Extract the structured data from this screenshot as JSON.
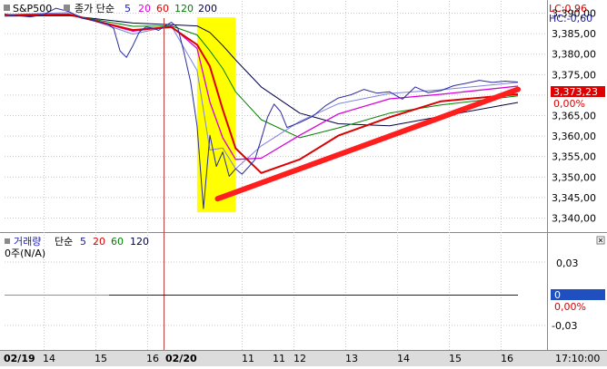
{
  "price_panel": {
    "symbol": "S&P500",
    "ma_label": "종가 단순",
    "ma_periods": [
      "5",
      "20",
      "60",
      "120",
      "200"
    ],
    "ma_colors": [
      "#1a1aa8",
      "#d800d8",
      "#dd0000",
      "#008000",
      "#000040"
    ],
    "lc_label": "LC:0,96",
    "hc_label": "HC:-0,60",
    "current_price_tag": "3,373,23",
    "pct_label": "0,00%",
    "y_ticks": [
      "3,390,00",
      "3,385,00",
      "3,380,00",
      "3,375,00",
      "3,370,00",
      "3,365,00",
      "3,360,00",
      "3,355,00",
      "3,350,00",
      "3,345,00",
      "3,340,00"
    ]
  },
  "volume_panel": {
    "label": "거래량",
    "ma_label": "단순",
    "ma_periods": [
      "5",
      "20",
      "60",
      "120"
    ],
    "ma_colors": [
      "#1a1aa8",
      "#dd0000",
      "#008000",
      "#000040"
    ],
    "unit_label": "0주(N/A)",
    "y_ticks": [
      "0,03",
      "0,00%",
      "-0,03"
    ],
    "value_tag": "0",
    "collapse_icon": "close-icon"
  },
  "x_axis": {
    "labels": [
      "02/19",
      "14",
      "15",
      "16",
      "02/20",
      "11",
      "11",
      "12",
      "13",
      "14",
      "15",
      "16"
    ],
    "time": "17:10:00"
  },
  "chart_data": {
    "type": "line",
    "title": "",
    "series": [
      {
        "name": "S&P500",
        "x": [
          0,
          10,
          20,
          30,
          40,
          50,
          60,
          70,
          80,
          85,
          90,
          95,
          100,
          105,
          110,
          115,
          120,
          125,
          130,
          135,
          140,
          145,
          150,
          155,
          160,
          165,
          170,
          175,
          180,
          185,
          190,
          195,
          200,
          205,
          210,
          215,
          220,
          230,
          240,
          250,
          260,
          270,
          280,
          290,
          300,
          310,
          320,
          330,
          340,
          350,
          360,
          370,
          380,
          390,
          400
        ],
        "values": [
          3389.8,
          3389.4,
          3389.1,
          3389.6,
          3391.2,
          3390.4,
          3388.8,
          3388.2,
          3387.4,
          3386.3,
          3380.8,
          3379.2,
          3382.1,
          3385.4,
          3386.6,
          3386.4,
          3385.8,
          3386.9,
          3387.8,
          3386.4,
          3380.1,
          3373.2,
          3362.4,
          3342.3,
          3360.2,
          3352.6,
          3356.1,
          3350.2,
          3352.0,
          3350.7,
          3352.4,
          3354.2,
          3359.3,
          3364.7,
          3367.8,
          3366.0,
          3362.1,
          3363.3,
          3364.8,
          3367.4,
          3369.3,
          3370.1,
          3371.4,
          3370.5,
          3370.8,
          3369.0,
          3372.0,
          3370.6,
          3371.1,
          3372.3,
          3372.9,
          3373.6,
          3373.1,
          3373.4,
          3373.2
        ]
      },
      {
        "name": "5",
        "x": [
          0,
          50,
          100,
          130,
          150,
          160,
          170,
          180,
          200,
          230,
          260,
          300,
          340,
          400
        ],
        "values": [
          3389.6,
          3390.2,
          3384.9,
          3386.9,
          3376.0,
          3356.6,
          3357.1,
          3352.0,
          3357.6,
          3363.6,
          3367.9,
          3370.4,
          3371.3,
          3373.1
        ]
      },
      {
        "name": "20",
        "x": [
          0,
          50,
          100,
          130,
          150,
          160,
          170,
          180,
          200,
          230,
          260,
          300,
          340,
          400
        ],
        "values": [
          3389.4,
          3389.8,
          3385.6,
          3386.8,
          3381.4,
          3368.3,
          3359.6,
          3354.3,
          3354.6,
          3360.2,
          3365.4,
          3369.1,
          3370.2,
          3372.2
        ]
      },
      {
        "name": "60",
        "x": [
          0,
          50,
          100,
          130,
          150,
          160,
          170,
          180,
          200,
          230,
          260,
          300,
          340,
          400
        ],
        "values": [
          3389.5,
          3389.7,
          3385.9,
          3386.6,
          3382.3,
          3377.0,
          3366.5,
          3357.0,
          3351.0,
          3354.3,
          3360.1,
          3364.6,
          3368.5,
          3370.2
        ]
      },
      {
        "name": "120",
        "x": [
          0,
          50,
          100,
          130,
          150,
          160,
          170,
          180,
          200,
          230,
          260,
          300,
          340,
          400
        ],
        "values": [
          3389.4,
          3389.6,
          3386.8,
          3386.9,
          3384.7,
          3380.8,
          3376.5,
          3370.8,
          3364.0,
          3359.6,
          3362.0,
          3365.6,
          3367.6,
          3369.8
        ]
      },
      {
        "name": "200",
        "x": [
          0,
          50,
          100,
          130,
          150,
          160,
          170,
          180,
          200,
          230,
          260,
          300,
          340,
          400
        ],
        "values": [
          3389.3,
          3389.4,
          3387.6,
          3387.2,
          3386.9,
          3385.3,
          3382.1,
          3378.6,
          3372.0,
          3365.6,
          3363.0,
          3362.5,
          3364.8,
          3368.2
        ]
      }
    ],
    "highlight_box": {
      "x": [
        150,
        180
      ],
      "y": [
        3341.4,
        3389.0
      ]
    },
    "trendline": {
      "x": [
        166,
        400
      ],
      "values": [
        3344.7,
        3371.4
      ],
      "color": "#ff1e1e"
    },
    "ylim": [
      3337,
      3393
    ],
    "xlim": [
      0,
      400
    ]
  }
}
